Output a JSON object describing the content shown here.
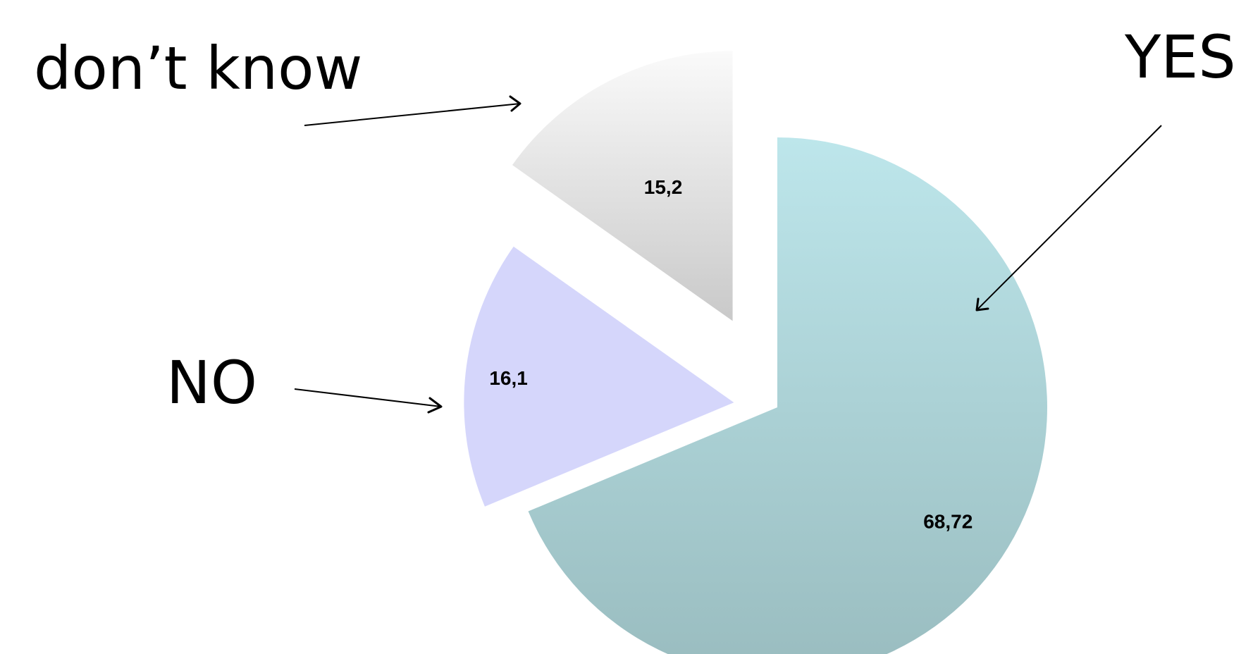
{
  "chart_data": {
    "type": "pie",
    "categories": [
      "YES",
      "NO",
      "don’t know"
    ],
    "values": [
      68.72,
      16.1,
      15.2
    ],
    "value_labels": [
      "68,72",
      "16,1",
      "15,2"
    ],
    "exploded": true,
    "title": "",
    "colors": [
      "#a3c9cb",
      "#d4d6fa",
      "#e6e6e6"
    ]
  }
}
